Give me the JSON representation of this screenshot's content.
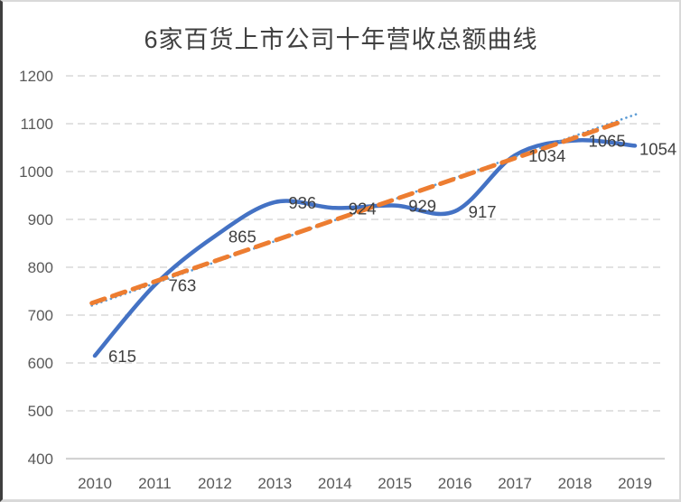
{
  "frame": {
    "background": "#ffffff",
    "border_color": "#d9d9d9",
    "left_edge_color": "#3f3f3f"
  },
  "chart_data": {
    "type": "line",
    "title": "6家百货上市公司十年营收总额曲线",
    "categories": [
      "2010",
      "2011",
      "2012",
      "2013",
      "2014",
      "2015",
      "2016",
      "2017",
      "2018",
      "2019"
    ],
    "series": [
      {
        "name": "营收总额",
        "color": "#4472C4",
        "smooth": true,
        "values": [
          615,
          763,
          865,
          936,
          924,
          929,
          917,
          1034,
          1065,
          1054
        ],
        "data_labels": [
          "615",
          "763",
          "865",
          "936",
          "924",
          "929",
          "917",
          "1034",
          "1065",
          "1054"
        ]
      }
    ],
    "trendlines": [
      {
        "name": "linear-trend-dashed",
        "color": "#ED7D31",
        "style": "dashed",
        "width": 5,
        "dash": "15 9",
        "from": {
          "index": -0.05,
          "value": 725
        },
        "to": {
          "index": 8.75,
          "value": 1103
        }
      },
      {
        "name": "linear-trend-dotted",
        "color": "#5B9BD5",
        "style": "dotted",
        "width": 2.6,
        "dash": "0.1 5.5",
        "from": {
          "index": -0.05,
          "value": 720
        },
        "to": {
          "index": 9.05,
          "value": 1121
        }
      }
    ],
    "ylim": [
      400,
      1200
    ],
    "ytick_step": 100,
    "yticks": [
      "400",
      "500",
      "600",
      "700",
      "800",
      "900",
      "1000",
      "1100",
      "1200"
    ],
    "xlabel": "",
    "ylabel": "",
    "grid": "horizontal-dashed",
    "gridline_color": "#d9d9d9",
    "axis_line_color": "#d2d2d2",
    "tick_label_color": "#595959",
    "data_label_color": "#404040",
    "legend": "none",
    "data_labels_visible": true
  }
}
